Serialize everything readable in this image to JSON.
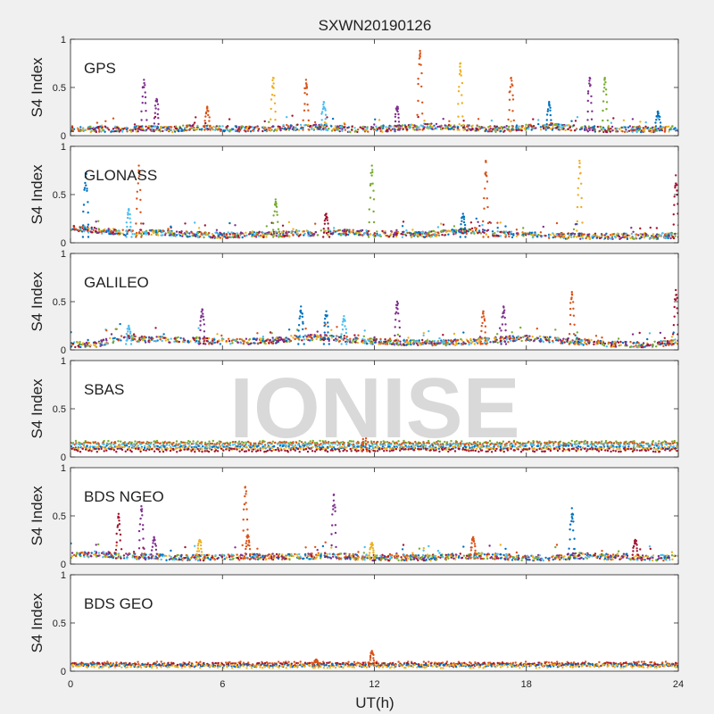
{
  "chart_data": {
    "type": "scatter",
    "title": "SXWN20190126",
    "xlabel": "UT(h)",
    "xlim": [
      0,
      24
    ],
    "xticks": [
      "0",
      "6",
      "12",
      "18",
      "24"
    ],
    "watermark": "IONISE",
    "series_colors": [
      "#0072BD",
      "#D95319",
      "#EDB120",
      "#7E2F8E",
      "#77AC30",
      "#4DBEEE",
      "#A2142F"
    ],
    "panels": [
      {
        "label": "GPS",
        "ylabel": "S4 Index",
        "ylim": [
          0,
          1
        ],
        "yticks": [
          "0",
          "0.5",
          "1"
        ],
        "baseline": [
          0.07,
          0.06,
          0.06,
          0.07,
          0.06,
          0.08,
          0.07,
          0.06,
          0.07,
          0.08,
          0.08,
          0.06,
          0.06,
          0.07,
          0.09,
          0.09,
          0.07,
          0.06,
          0.08,
          0.09,
          0.07,
          0.06,
          0.06,
          0.06,
          0.07
        ],
        "spikes": [
          {
            "x": 2.9,
            "y": 0.58,
            "c": 3
          },
          {
            "x": 3.4,
            "y": 0.38,
            "c": 3
          },
          {
            "x": 5.4,
            "y": 0.3,
            "c": 1
          },
          {
            "x": 8.0,
            "y": 0.6,
            "c": 2
          },
          {
            "x": 9.3,
            "y": 0.58,
            "c": 1
          },
          {
            "x": 10.0,
            "y": 0.35,
            "c": 5
          },
          {
            "x": 12.9,
            "y": 0.3,
            "c": 3
          },
          {
            "x": 13.8,
            "y": 0.88,
            "c": 1
          },
          {
            "x": 15.4,
            "y": 0.75,
            "c": 2
          },
          {
            "x": 17.4,
            "y": 0.6,
            "c": 1
          },
          {
            "x": 18.9,
            "y": 0.35,
            "c": 0
          },
          {
            "x": 20.5,
            "y": 0.6,
            "c": 3
          },
          {
            "x": 21.1,
            "y": 0.6,
            "c": 4
          },
          {
            "x": 23.2,
            "y": 0.25,
            "c": 0
          }
        ]
      },
      {
        "label": "GLONASS",
        "ylabel": "S4 Index",
        "ylim": [
          0,
          1
        ],
        "yticks": [
          "0",
          "0.5",
          "1"
        ],
        "baseline": [
          0.15,
          0.12,
          0.1,
          0.1,
          0.09,
          0.08,
          0.07,
          0.08,
          0.08,
          0.09,
          0.1,
          0.1,
          0.09,
          0.08,
          0.08,
          0.1,
          0.12,
          0.08,
          0.08,
          0.07,
          0.06,
          0.06,
          0.06,
          0.06,
          0.07
        ],
        "spikes": [
          {
            "x": 0.6,
            "y": 0.72,
            "c": 0
          },
          {
            "x": 2.7,
            "y": 0.8,
            "c": 1
          },
          {
            "x": 2.3,
            "y": 0.35,
            "c": 5
          },
          {
            "x": 8.1,
            "y": 0.45,
            "c": 4
          },
          {
            "x": 10.1,
            "y": 0.3,
            "c": 6
          },
          {
            "x": 11.9,
            "y": 0.8,
            "c": 4
          },
          {
            "x": 15.5,
            "y": 0.3,
            "c": 0
          },
          {
            "x": 16.4,
            "y": 0.85,
            "c": 1
          },
          {
            "x": 20.1,
            "y": 0.85,
            "c": 2
          },
          {
            "x": 23.9,
            "y": 0.7,
            "c": 6
          }
        ]
      },
      {
        "label": "GALILEO",
        "ylabel": "S4 Index",
        "ylim": [
          0,
          1
        ],
        "yticks": [
          "0",
          "0.5",
          "1"
        ],
        "baseline": [
          0.05,
          0.05,
          0.12,
          0.1,
          0.1,
          0.09,
          0.08,
          0.08,
          0.09,
          0.12,
          0.12,
          0.1,
          0.08,
          0.07,
          0.07,
          0.07,
          0.08,
          0.1,
          0.12,
          0.1,
          0.08,
          0.06,
          0.05,
          0.05,
          0.08
        ],
        "spikes": [
          {
            "x": 2.3,
            "y": 0.25,
            "c": 5
          },
          {
            "x": 5.2,
            "y": 0.42,
            "c": 3
          },
          {
            "x": 9.1,
            "y": 0.45,
            "c": 0
          },
          {
            "x": 10.1,
            "y": 0.4,
            "c": 0
          },
          {
            "x": 10.8,
            "y": 0.35,
            "c": 5
          },
          {
            "x": 12.9,
            "y": 0.5,
            "c": 3
          },
          {
            "x": 16.3,
            "y": 0.4,
            "c": 1
          },
          {
            "x": 17.1,
            "y": 0.45,
            "c": 3
          },
          {
            "x": 19.8,
            "y": 0.6,
            "c": 1
          },
          {
            "x": 23.9,
            "y": 0.62,
            "c": 6
          }
        ]
      },
      {
        "label": "SBAS",
        "ylabel": "S4 Index",
        "ylim": [
          0,
          1
        ],
        "yticks": [
          "0",
          "0.5",
          "1"
        ],
        "bands": [
          0.15,
          0.14,
          0.12,
          0.1,
          0.09,
          0.07
        ],
        "band_colors": [
          4,
          1,
          5,
          0,
          2,
          6
        ],
        "spikes": [
          {
            "x": 11.6,
            "y": 0.25,
            "c": 1
          }
        ]
      },
      {
        "label": "BDS NGEO",
        "ylabel": "S4 Index",
        "ylim": [
          0,
          1
        ],
        "yticks": [
          "0",
          "0.5",
          "1"
        ],
        "baseline": [
          0.08,
          0.1,
          0.08,
          0.07,
          0.06,
          0.06,
          0.06,
          0.07,
          0.07,
          0.07,
          0.08,
          0.07,
          0.06,
          0.06,
          0.06,
          0.07,
          0.08,
          0.07,
          0.06,
          0.06,
          0.08,
          0.07,
          0.07,
          0.06,
          0.06
        ],
        "spikes": [
          {
            "x": 1.9,
            "y": 0.52,
            "c": 6
          },
          {
            "x": 2.8,
            "y": 0.6,
            "c": 3
          },
          {
            "x": 3.3,
            "y": 0.28,
            "c": 3
          },
          {
            "x": 5.1,
            "y": 0.25,
            "c": 2
          },
          {
            "x": 6.9,
            "y": 0.8,
            "c": 1
          },
          {
            "x": 7.0,
            "y": 0.3,
            "c": 1
          },
          {
            "x": 10.4,
            "y": 0.72,
            "c": 3
          },
          {
            "x": 11.9,
            "y": 0.22,
            "c": 2
          },
          {
            "x": 15.9,
            "y": 0.28,
            "c": 1
          },
          {
            "x": 19.8,
            "y": 0.58,
            "c": 0
          },
          {
            "x": 22.3,
            "y": 0.25,
            "c": 6
          }
        ]
      },
      {
        "label": "BDS GEO",
        "ylabel": "S4 Index",
        "ylim": [
          0,
          1
        ],
        "yticks": [
          "0",
          "0.5",
          "1"
        ],
        "bands": [
          0.08,
          0.07,
          0.06,
          0.05
        ],
        "band_colors": [
          1,
          6,
          0,
          2
        ],
        "spikes": [
          {
            "x": 11.9,
            "y": 0.21,
            "c": 1
          },
          {
            "x": 9.7,
            "y": 0.12,
            "c": 1
          }
        ]
      }
    ]
  }
}
